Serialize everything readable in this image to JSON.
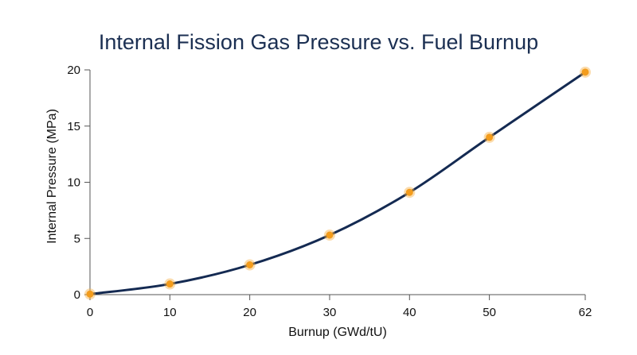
{
  "colors": {
    "line": "#142a52",
    "marker": "#f39c1c",
    "marker_glow": "#f7b24a"
  },
  "chart_data": {
    "type": "line",
    "title": "Internal Fission Gas Pressure vs. Fuel Burnup",
    "xlabel": "Burnup (GWd/tU)",
    "ylabel": "Internal Pressure (MPa)",
    "xlim": [
      0,
      62
    ],
    "ylim": [
      0,
      20
    ],
    "xticks": [
      0,
      10,
      20,
      30,
      40,
      50,
      62
    ],
    "yticks": [
      0,
      5,
      10,
      15,
      20
    ],
    "grid": false,
    "legend": "none",
    "series": [
      {
        "x": [
          0,
          10,
          20,
          30,
          40,
          50,
          62
        ],
        "y": [
          0.05,
          0.95,
          2.65,
          5.3,
          9.1,
          14.0,
          19.8
        ]
      }
    ]
  }
}
